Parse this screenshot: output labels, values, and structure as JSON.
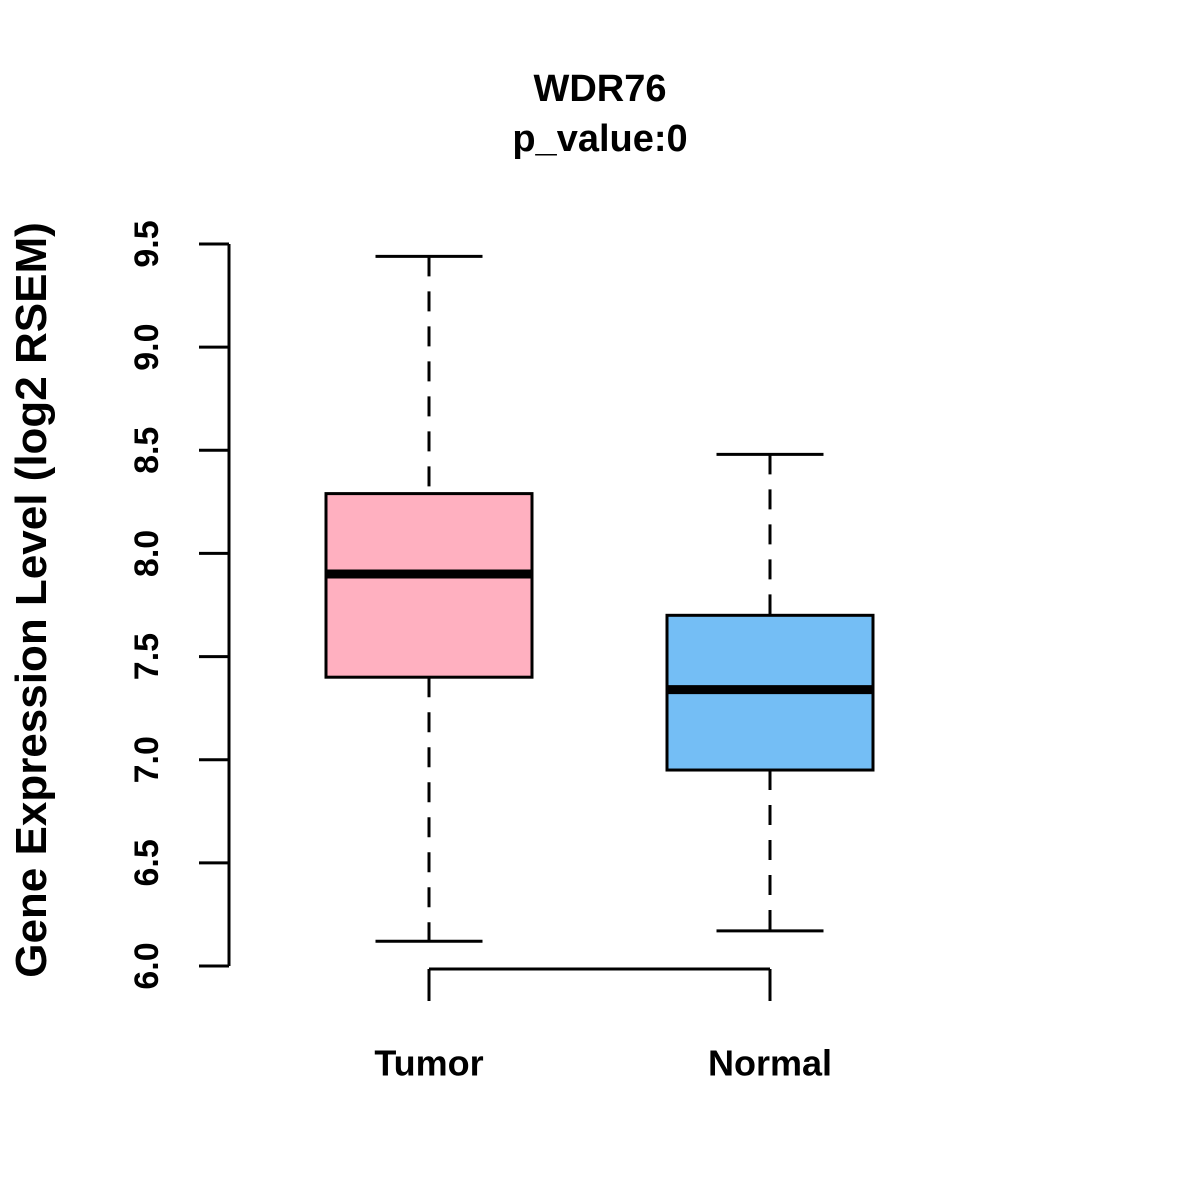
{
  "title": "WDR76",
  "subtitle": "p_value:0",
  "chart_data": {
    "type": "boxplot",
    "title": "WDR76",
    "subtitle": "p_value:0",
    "xlabel": "",
    "ylabel": "Gene Expression Level (log2 RSEM)",
    "ylim": [
      6.0,
      9.5
    ],
    "ytick_labels": [
      "6.0",
      "6.5",
      "7.0",
      "7.5",
      "8.0",
      "8.5",
      "9.0",
      "9.5"
    ],
    "categories": [
      "Tumor",
      "Normal"
    ],
    "grid": "off",
    "legend": "none",
    "whisker_style": "dashed",
    "box_edge_color": "#000000",
    "median_color": "#000000",
    "series": [
      {
        "name": "Tumor",
        "fill_color": "#FFB0C0",
        "whisker_low": 6.12,
        "q1": 7.4,
        "median": 7.9,
        "q3": 8.29,
        "whisker_high": 9.44
      },
      {
        "name": "Normal",
        "fill_color": "#74BEF5",
        "whisker_low": 6.17,
        "q1": 6.95,
        "median": 7.34,
        "q3": 7.7,
        "whisker_high": 8.48
      }
    ]
  }
}
